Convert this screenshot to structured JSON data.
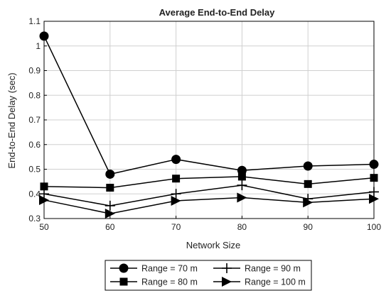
{
  "chart_data": {
    "type": "line",
    "title": "Average End-to-End Delay",
    "xlabel": "Network Size",
    "ylabel": "End-to-End Delay (sec)",
    "x": [
      50,
      60,
      70,
      80,
      90,
      100
    ],
    "xlim": [
      50,
      100
    ],
    "ylim": [
      0.3,
      1.1
    ],
    "xticks": [
      "50",
      "60",
      "70",
      "80",
      "90",
      "100"
    ],
    "yticks": [
      "0.3",
      "0.4",
      "0.5",
      "0.6",
      "0.7",
      "0.8",
      "0.9",
      "1",
      "1.1"
    ],
    "grid": true,
    "legend_position": "bottom",
    "series": [
      {
        "name": "Range = 70 m",
        "marker": "circle",
        "values": [
          1.04,
          0.48,
          0.54,
          0.495,
          0.513,
          0.52
        ]
      },
      {
        "name": "Range = 80 m",
        "marker": "square",
        "values": [
          0.43,
          0.425,
          0.462,
          0.47,
          0.44,
          0.465
        ]
      },
      {
        "name": "Range = 90 m",
        "marker": "plus",
        "values": [
          0.4,
          0.352,
          0.4,
          0.435,
          0.38,
          0.408
        ]
      },
      {
        "name": "Range = 100 m",
        "marker": "triangle-right",
        "values": [
          0.375,
          0.32,
          0.372,
          0.385,
          0.365,
          0.38
        ]
      }
    ]
  }
}
